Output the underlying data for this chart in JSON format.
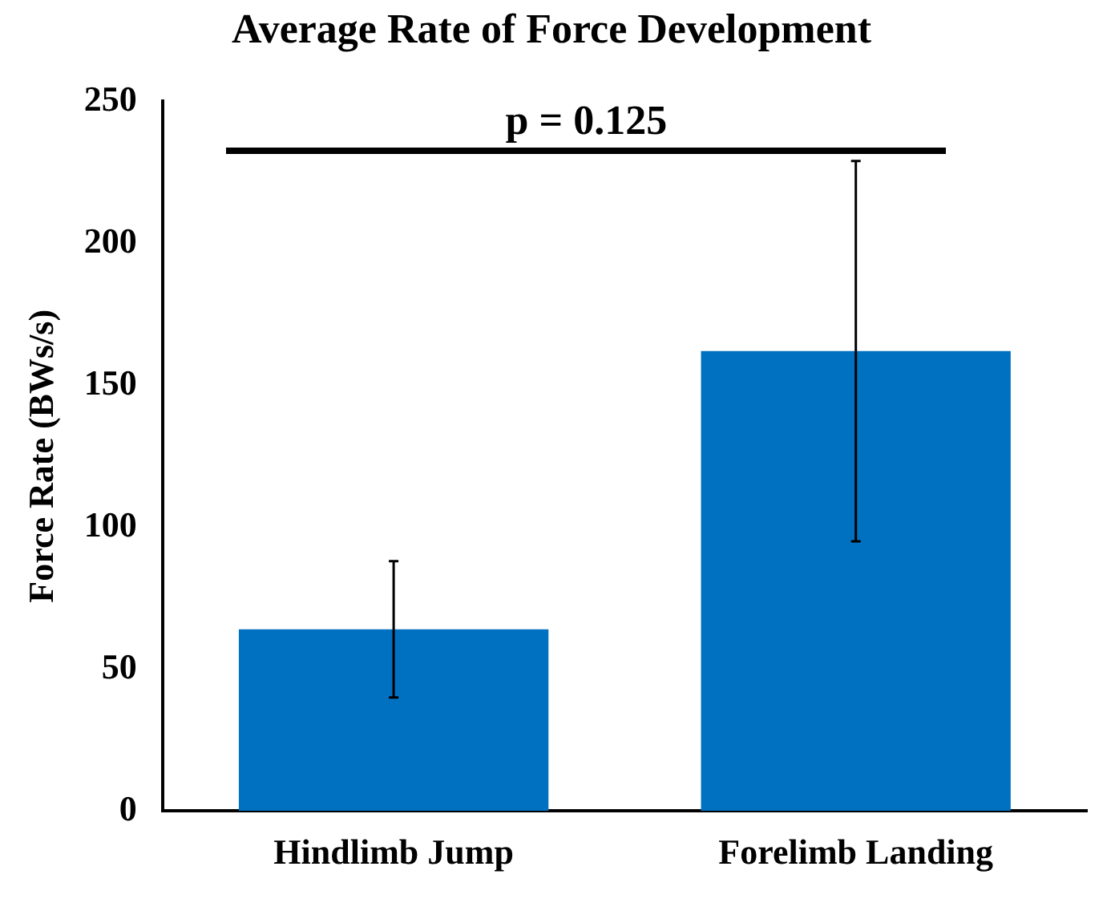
{
  "chart_data": {
    "type": "bar",
    "title": "Average Rate of Force Development",
    "ylabel": "Force Rate (BWs/s)",
    "categories": [
      "Hindlimb Jump",
      "Forelimb Landing"
    ],
    "values": [
      64,
      162
    ],
    "errors": [
      24,
      67
    ],
    "color": "#0070c0",
    "ylim": [
      0,
      250
    ],
    "yticks": [
      0,
      50,
      100,
      150,
      200,
      250
    ],
    "grid": false,
    "legend": false,
    "annotations": [
      "p = 0.125"
    ]
  }
}
